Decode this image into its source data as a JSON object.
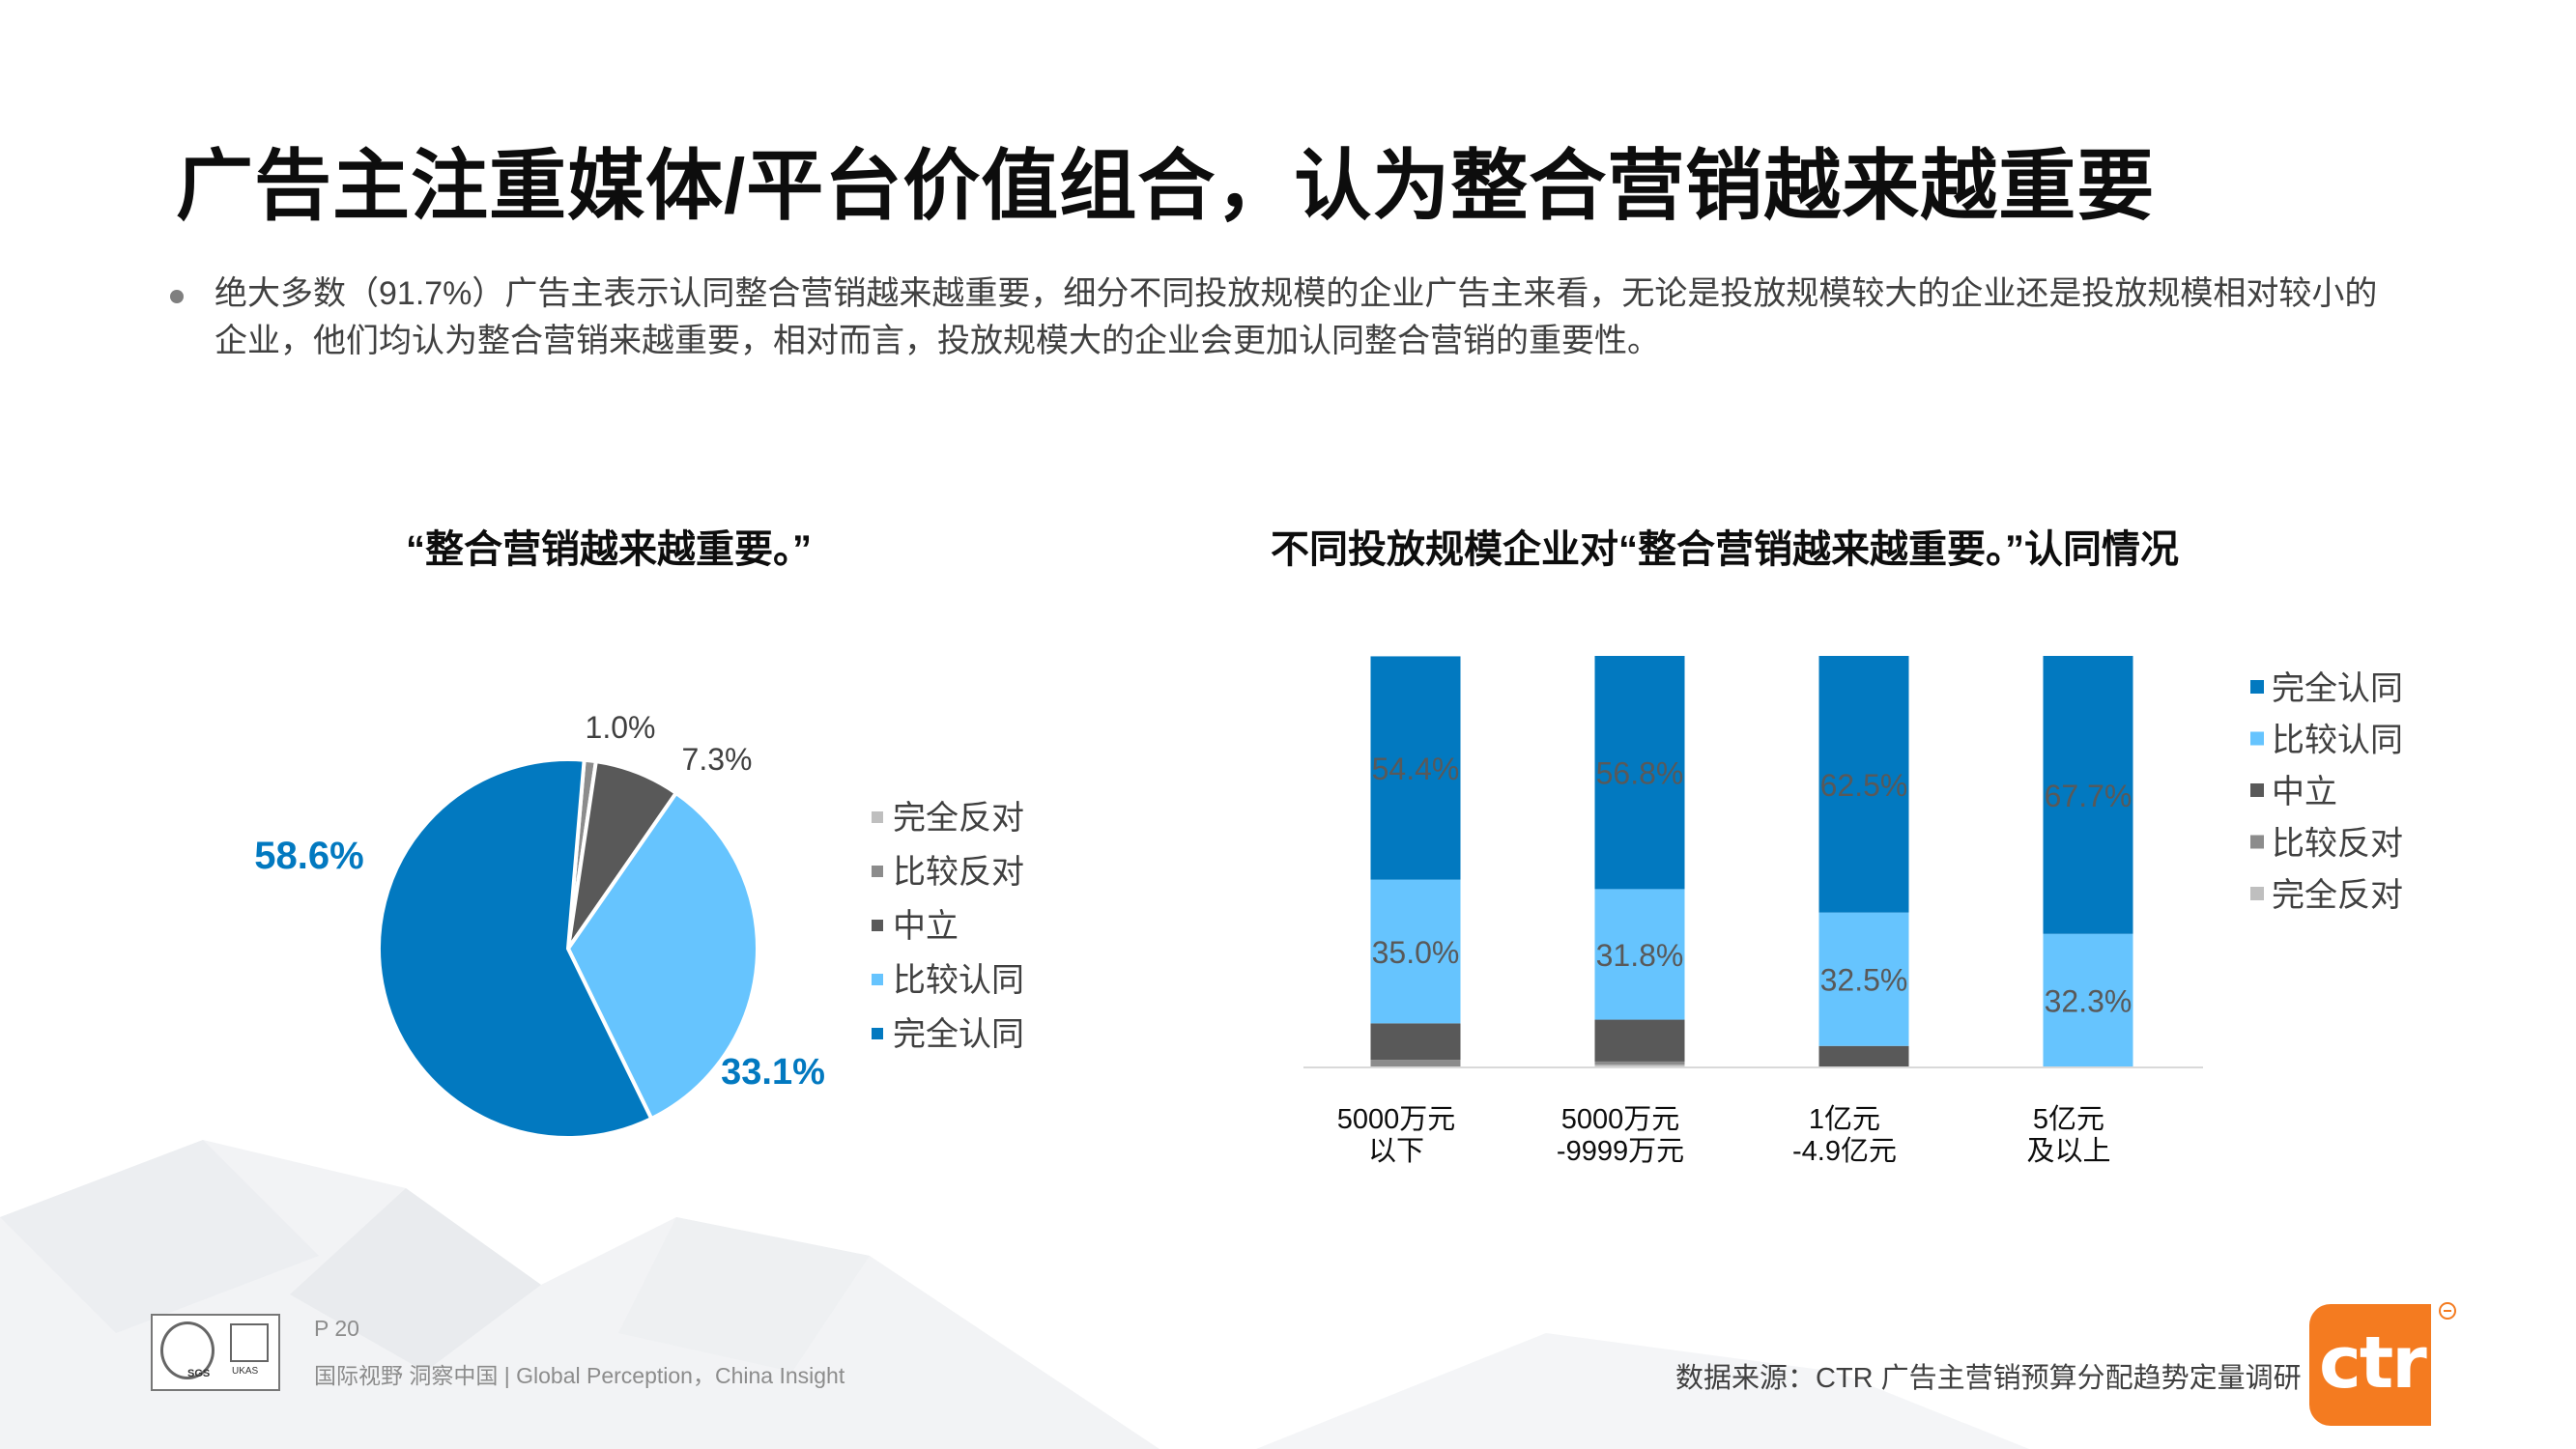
{
  "slide": {
    "title": "广告主注重媒体/平台价值组合，认为整合营销越来越重要",
    "bullet": "绝大多数（91.7%）广告主表示认同整合营销越来越重要，细分不同投放规模的企业广告主来看，无论是投放规模较大的企业还是投放规模相对较小的企业，他们均认为整合营销来越重要，相对而言，投放规模大的企业会更加认同整合营销的重要性。"
  },
  "footer": {
    "page": "P 20",
    "slogan": "国际视野  洞察中国 |  Global Perception，China Insight",
    "source": "数据来源：CTR 广告主营销预算分配趋势定量调研",
    "cert_a": "SGS",
    "cert_b": "UKAS",
    "logo_text": "ctr"
  },
  "colors": {
    "完全认同": "#0279c0",
    "比较认同": "#66c4fe",
    "中立": "#595959",
    "比较反对": "#8c8c8c",
    "完全反对": "#bfbfbf",
    "brand_orange": "#f47b20"
  },
  "chart_data": [
    {
      "type": "pie",
      "title": "“整合营销越来越重要。”",
      "slices": [
        {
          "name": "完全认同",
          "value": 58.6,
          "label": "58.6%"
        },
        {
          "name": "比较认同",
          "value": 33.1,
          "label": "33.1%"
        },
        {
          "name": "中立",
          "value": 7.3,
          "label": "7.3%"
        },
        {
          "name": "比较反对",
          "value": 1.0,
          "label": "1.0%"
        },
        {
          "name": "完全反对",
          "value": 0.0,
          "label": ""
        }
      ],
      "legend": [
        "完全反对",
        "比较反对",
        "中立",
        "比较认同",
        "完全认同"
      ],
      "legend_position": "right"
    },
    {
      "type": "bar",
      "stacked": true,
      "title": "不同投放规模企业对“整合营销越来越重要。”认同情况",
      "categories": [
        [
          "5000万元",
          "以下"
        ],
        [
          "5000万元",
          "-9999万元"
        ],
        [
          "1亿元",
          "-4.9亿元"
        ],
        [
          "5亿元",
          "及以上"
        ]
      ],
      "series": [
        {
          "name": "完全反对",
          "values": [
            0.0,
            0.4,
            0.0,
            0.0
          ]
        },
        {
          "name": "比较反对",
          "values": [
            1.6,
            0.8,
            0.0,
            0.0
          ]
        },
        {
          "name": "中立",
          "values": [
            8.9,
            10.2,
            5.0,
            0.0
          ]
        },
        {
          "name": "比较认同",
          "values": [
            35.0,
            31.8,
            32.5,
            32.3
          ],
          "labels": [
            "35.0%",
            "31.8%",
            "32.5%",
            "32.3%"
          ]
        },
        {
          "name": "完全认同",
          "values": [
            54.4,
            56.8,
            62.5,
            67.7
          ],
          "labels": [
            "54.4%",
            "56.8%",
            "62.5%",
            "67.7%"
          ]
        }
      ],
      "legend": [
        "完全认同",
        "比较认同",
        "中立",
        "比较反对",
        "完全反对"
      ],
      "legend_position": "right",
      "ylim": [
        0,
        100
      ]
    }
  ]
}
